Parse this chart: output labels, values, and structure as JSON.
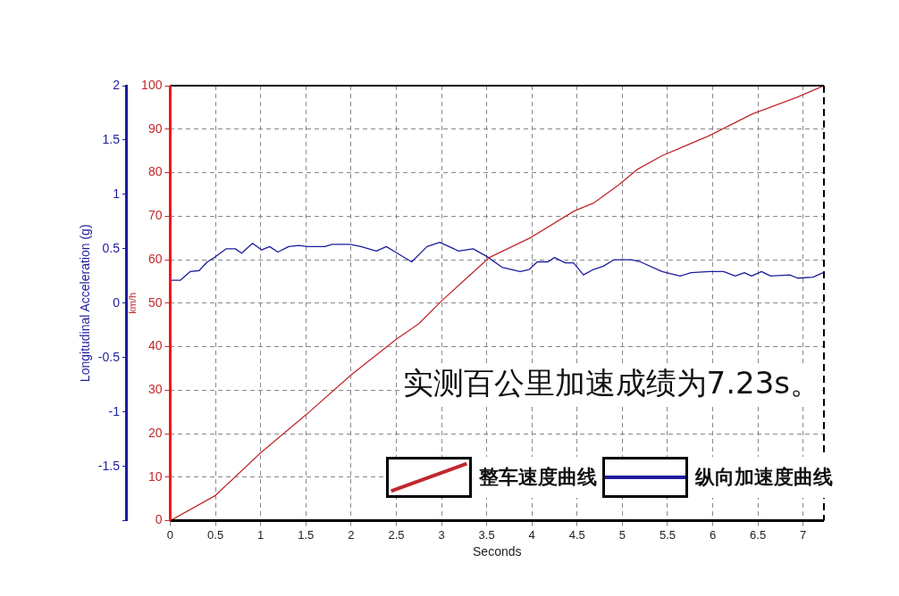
{
  "chart_data": {
    "type": "line",
    "xlabel": "Seconds",
    "ylabel": "km/h",
    "y2label": "Longitudinal Acceleration (g)",
    "annotations": [
      "实测百公里加速成绩为7.23s。"
    ],
    "xlim": [
      0,
      7.23
    ],
    "xticks": [
      0,
      0.5,
      1,
      1.5,
      2,
      2.5,
      3,
      3.5,
      4,
      4.5,
      5,
      5.5,
      6,
      6.5,
      7
    ],
    "ylim": [
      0,
      100
    ],
    "yticks": [
      0,
      10,
      20,
      30,
      40,
      50,
      60,
      70,
      80,
      90,
      100
    ],
    "y2lim": [
      -2,
      2
    ],
    "y2ticks": [
      {
        "value": -2,
        "label": null
      },
      -1.5,
      -1,
      -0.5,
      0,
      0.5,
      1,
      1.5,
      2
    ],
    "grid": true,
    "legend": "bottom right",
    "marker": "none",
    "line_style": "solid",
    "series": [
      {
        "name": "整车速度曲线",
        "color": "#c0282d",
        "x": [
          0,
          0.5,
          1,
          1.5,
          2,
          2.5,
          2.75,
          3,
          3.53,
          3.98,
          4.47,
          4.68,
          4.96,
          5.17,
          5.44,
          5.95,
          6.44,
          6.93,
          7.23
        ],
        "values": [
          0,
          5.8,
          15.6,
          24.3,
          33.5,
          41.7,
          45.3,
          50.5,
          60.5,
          65,
          71.2,
          73,
          77.2,
          80.8,
          83.9,
          88.4,
          93.5,
          97.3,
          100
        ]
      },
      {
        "name": "纵向加速度曲线",
        "color": "#1c1c9c",
        "axis": "y2",
        "x": [
          0.01,
          0.11,
          0.22,
          0.32,
          0.41,
          0.49,
          0.62,
          0.72,
          0.79,
          0.91,
          1.01,
          1.1,
          1.19,
          1.31,
          1.42,
          1.52,
          1.71,
          1.79,
          1.99,
          2.11,
          2.28,
          2.39,
          2.49,
          2.67,
          2.84,
          2.98,
          3.19,
          3.35,
          3.5,
          3.67,
          3.87,
          3.97,
          4.06,
          4.18,
          4.25,
          4.37,
          4.46,
          4.57,
          4.68,
          4.79,
          4.91,
          5.1,
          5.2,
          5.44,
          5.64,
          5.76,
          5.96,
          6.12,
          6.25,
          6.35,
          6.43,
          6.54,
          6.64,
          6.85,
          6.94,
          7.11,
          7.22
        ],
        "values": [
          0.21,
          0.21,
          0.29,
          0.3,
          0.38,
          0.42,
          0.5,
          0.5,
          0.46,
          0.55,
          0.49,
          0.52,
          0.47,
          0.52,
          0.53,
          0.52,
          0.52,
          0.54,
          0.54,
          0.52,
          0.48,
          0.52,
          0.47,
          0.38,
          0.52,
          0.56,
          0.48,
          0.5,
          0.43,
          0.33,
          0.29,
          0.31,
          0.38,
          0.38,
          0.42,
          0.37,
          0.37,
          0.26,
          0.31,
          0.34,
          0.4,
          0.4,
          0.38,
          0.29,
          0.25,
          0.28,
          0.29,
          0.29,
          0.25,
          0.28,
          0.25,
          0.29,
          0.25,
          0.26,
          0.23,
          0.24,
          0.28
        ]
      }
    ]
  }
}
